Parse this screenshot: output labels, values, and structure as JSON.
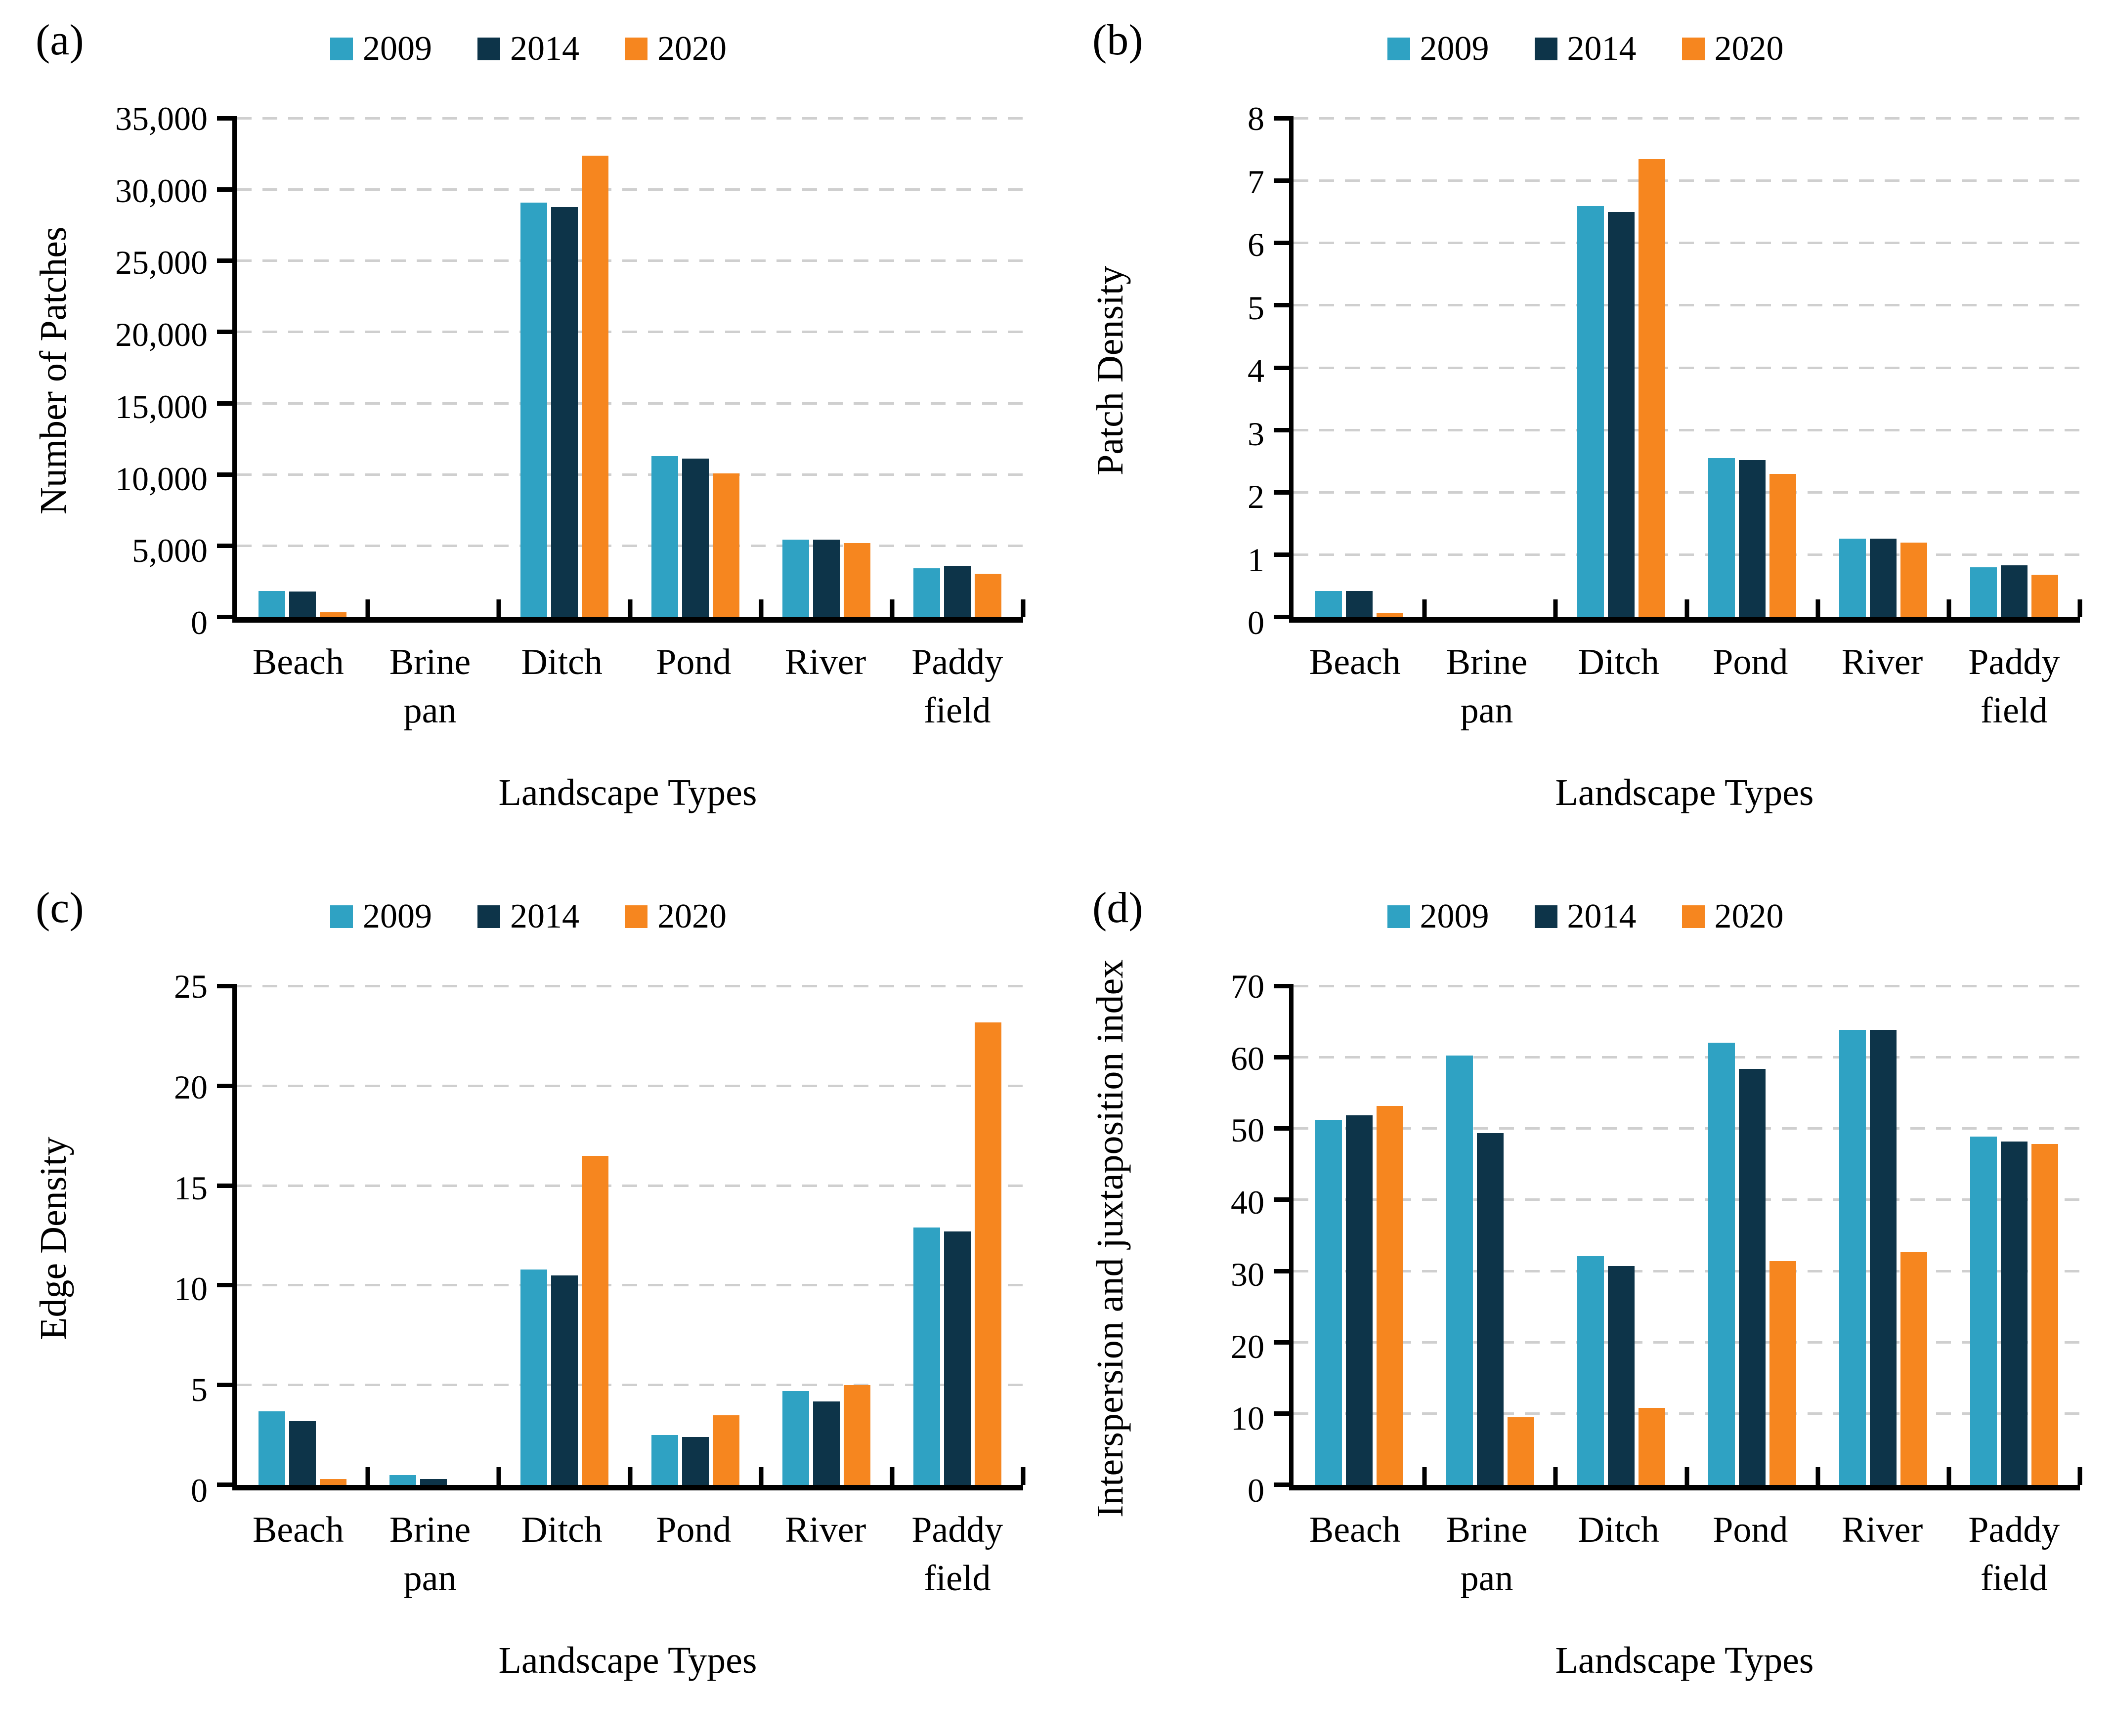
{
  "figure_background": "#ffffff",
  "grid_color": "#cfcfcf",
  "axis_color": "#000000",
  "legend_labels": [
    "2009",
    "2014",
    "2020"
  ],
  "series_colors": [
    "#2fa2c3",
    "#0d3449",
    "#f6861f"
  ],
  "chart_data": [
    {
      "type": "bar",
      "panel_label": "(a)",
      "ylabel": "Number of Patches",
      "xlabel": "Landscape Types",
      "categories": [
        "Beach",
        "Brine pan",
        "Ditch",
        "Pond",
        "River",
        "Paddy field"
      ],
      "ylim": [
        0,
        35000
      ],
      "ytick_step": 5000,
      "ytick_labels": [
        "0",
        "5,000",
        "10,000",
        "15,000",
        "20,000",
        "25,000",
        "30,000",
        "35,000"
      ],
      "grid": "horizontal-dashed",
      "legend_position": "top",
      "series": [
        {
          "name": "2009",
          "color": "#2fa2c3",
          "values": [
            1850,
            0,
            29100,
            11300,
            5450,
            3450
          ]
        },
        {
          "name": "2014",
          "color": "#0d3449",
          "values": [
            1820,
            0,
            28800,
            11150,
            5450,
            3600
          ]
        },
        {
          "name": "2020",
          "color": "#f6861f",
          "values": [
            350,
            0,
            32400,
            10100,
            5200,
            3050
          ]
        }
      ]
    },
    {
      "type": "bar",
      "panel_label": "(b)",
      "ylabel": "Patch Density",
      "xlabel": "Landscape Types",
      "categories": [
        "Beach",
        "Brine pan",
        "Ditch",
        "Pond",
        "River",
        "Paddy field"
      ],
      "ylim": [
        0,
        8
      ],
      "ytick_step": 1,
      "ytick_labels": [
        "0",
        "1",
        "2",
        "3",
        "4",
        "5",
        "6",
        "7",
        "8"
      ],
      "grid": "horizontal-dashed",
      "legend_position": "top",
      "series": [
        {
          "name": "2009",
          "color": "#2fa2c3",
          "values": [
            0.42,
            0,
            6.6,
            2.55,
            1.26,
            0.8
          ]
        },
        {
          "name": "2014",
          "color": "#0d3449",
          "values": [
            0.42,
            0,
            6.5,
            2.52,
            1.26,
            0.83
          ]
        },
        {
          "name": "2020",
          "color": "#f6861f",
          "values": [
            0.07,
            0,
            7.35,
            2.3,
            1.2,
            0.68
          ]
        }
      ]
    },
    {
      "type": "bar",
      "panel_label": "(c)",
      "ylabel": "Edge Density",
      "xlabel": "Landscape Types",
      "categories": [
        "Beach",
        "Brine pan",
        "Ditch",
        "Pond",
        "River",
        "Paddy field"
      ],
      "ylim": [
        0,
        25
      ],
      "ytick_step": 5,
      "ytick_labels": [
        "0",
        "5",
        "10",
        "15",
        "20",
        "25"
      ],
      "grid": "horizontal-dashed",
      "legend_position": "top",
      "series": [
        {
          "name": "2009",
          "color": "#2fa2c3",
          "values": [
            3.7,
            0.5,
            10.8,
            2.5,
            4.7,
            12.9
          ]
        },
        {
          "name": "2014",
          "color": "#0d3449",
          "values": [
            3.2,
            0.3,
            10.5,
            2.4,
            4.2,
            12.7
          ]
        },
        {
          "name": "2020",
          "color": "#f6861f",
          "values": [
            0.3,
            0,
            16.5,
            3.5,
            5.0,
            23.2
          ]
        }
      ]
    },
    {
      "type": "bar",
      "panel_label": "(d)",
      "ylabel": "Interspersion and juxtaposition index",
      "xlabel": "Landscape Types",
      "categories": [
        "Beach",
        "Brine pan",
        "Ditch",
        "Pond",
        "River",
        "Paddy field"
      ],
      "ylim": [
        0,
        70
      ],
      "ytick_step": 10,
      "ytick_labels": [
        "0",
        "10",
        "20",
        "30",
        "40",
        "50",
        "60",
        "70"
      ],
      "grid": "horizontal-dashed",
      "legend_position": "top",
      "series": [
        {
          "name": "2009",
          "color": "#2fa2c3",
          "values": [
            51.3,
            60.3,
            32.1,
            62.1,
            63.9,
            48.9
          ]
        },
        {
          "name": "2014",
          "color": "#0d3449",
          "values": [
            51.9,
            49.4,
            30.7,
            58.4,
            63.9,
            48.2
          ]
        },
        {
          "name": "2020",
          "color": "#f6861f",
          "values": [
            53.2,
            9.5,
            10.8,
            31.4,
            32.7,
            47.9
          ]
        }
      ]
    }
  ]
}
